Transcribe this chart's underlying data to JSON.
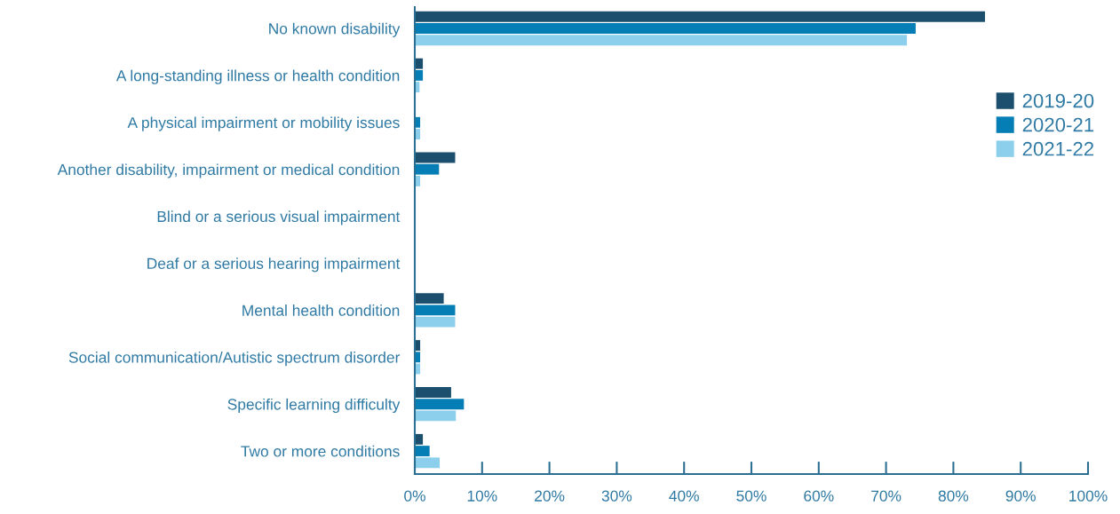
{
  "chart_data": {
    "type": "bar",
    "orientation": "horizontal",
    "categories": [
      "No known disability",
      "A long-standing illness or health condition",
      "A physical impairment or mobility issues",
      "Another disability, impairment or medical condition",
      "Blind or a serious visual impairment",
      "Deaf or a serious hearing impairment",
      "Mental health condition",
      "Social communication/Autistic spectrum disorder",
      "Specific learning difficulty",
      "Two or more conditions"
    ],
    "series": [
      {
        "name": "2019-20",
        "color": "#1c4f6e",
        "values": [
          84.7,
          1.2,
          0,
          6,
          0,
          0,
          4.3,
          0.8,
          5.4,
          1.2
        ]
      },
      {
        "name": "2020-21",
        "color": "#047eb4",
        "values": [
          74.4,
          1.2,
          0.8,
          3.6,
          0,
          0,
          6,
          0.8,
          7.3,
          2.2
        ]
      },
      {
        "name": "2021-22",
        "color": "#8ccfed",
        "values": [
          73.1,
          0.7,
          0.8,
          0.8,
          0,
          0,
          6,
          0.8,
          6.1,
          3.7
        ]
      }
    ],
    "xlim": [
      0,
      100
    ],
    "xticks": [
      {
        "value": 0,
        "label": "0%"
      },
      {
        "value": 10,
        "label": "10%"
      },
      {
        "value": 20,
        "label": "20%"
      },
      {
        "value": 30,
        "label": "30%"
      },
      {
        "value": 40,
        "label": "40%"
      },
      {
        "value": 50,
        "label": "50%"
      },
      {
        "value": 60,
        "label": "60%"
      },
      {
        "value": 70,
        "label": "70%"
      },
      {
        "value": 80,
        "label": "80%"
      },
      {
        "value": 90,
        "label": "90%"
      },
      {
        "value": 100,
        "label": "100%"
      }
    ],
    "legend": "right"
  }
}
